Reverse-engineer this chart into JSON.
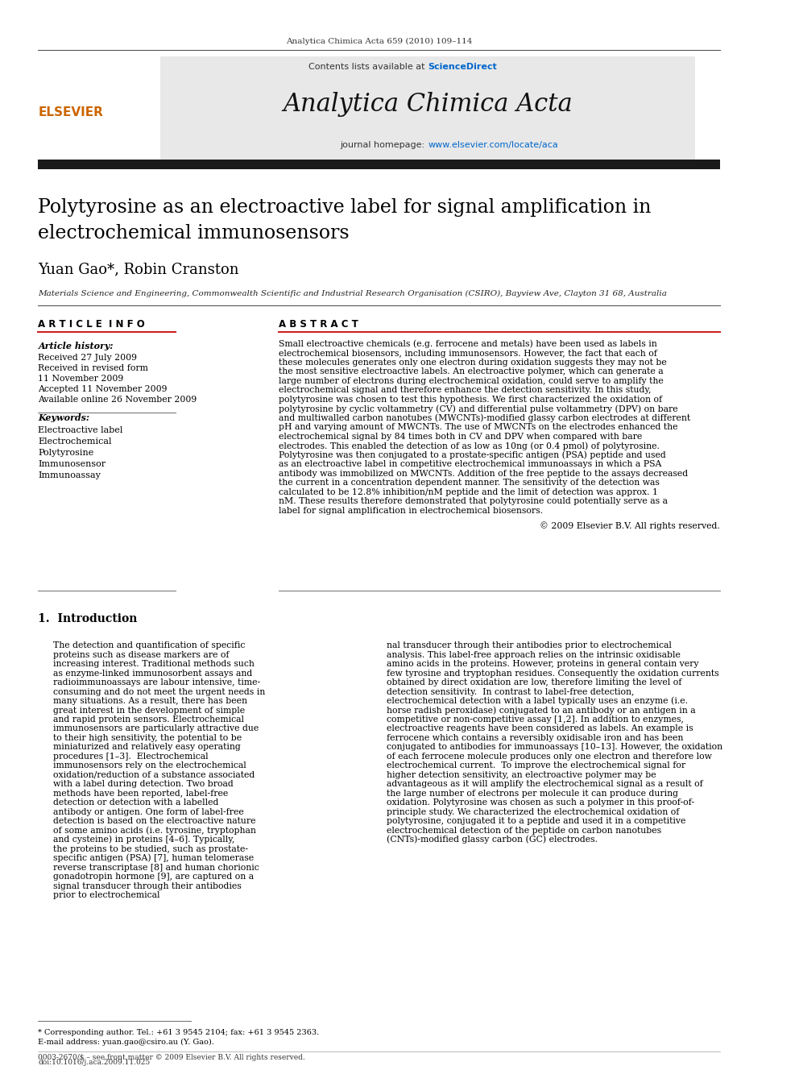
{
  "page_bg": "#ffffff",
  "top_journal_ref": "Analytica Chimica Acta 659 (2010) 109–114",
  "header_bg": "#e8e8e8",
  "journal_name": "Analytica Chimica Acta",
  "contents_line": "Contents lists available at ScienceDirect",
  "sciencedirect_color": "#0066cc",
  "homepage_line": "journal homepage: www.elsevier.com/locate/aca",
  "homepage_url_color": "#0066cc",
  "title": "Polytyrosine as an electroactive label for signal amplification in\nelectrochemical immunosensors",
  "authors": "Yuan Gao*, Robin Cranston",
  "affiliation": "Materials Science and Engineering, Commonwealth Scientific and Industrial Research Organisation (CSIRO), Bayview Ave, Clayton 31 68, Australia",
  "article_info_header": "A R T I C L E  I N F O",
  "abstract_header": "A B S T R A C T",
  "article_history_label": "Article history:",
  "received": "Received 27 July 2009",
  "received_revised": "Received in revised form",
  "date_revised": "11 November 2009",
  "accepted": "Accepted 11 November 2009",
  "available": "Available online 26 November 2009",
  "keywords_label": "Keywords:",
  "keywords": [
    "Electroactive label",
    "Electrochemical",
    "Polytyrosine",
    "Immunosensor",
    "Immunoassay"
  ],
  "abstract_text": "Small electroactive chemicals (e.g. ferrocene and metals) have been used as labels in electrochemical biosensors, including immunosensors. However, the fact that each of these molecules generates only one electron during oxidation suggests they may not be the most sensitive electroactive labels. An electroactive polymer, which can generate a large number of electrons during electrochemical oxidation, could serve to amplify the electrochemical signal and therefore enhance the detection sensitivity. In this study, polytyrosine was chosen to test this hypothesis. We first characterized the oxidation of polytyrosine by cyclic voltammetry (CV) and differential pulse voltammetry (DPV) on bare and multiwalled carbon nanotubes (MWCNTs)-modified glassy carbon electrodes at different pH and varying amount of MWCNTs. The use of MWCNTs on the electrodes enhanced the electrochemical signal by 84 times both in CV and DPV when compared with bare electrodes. This enabled the detection of as low as 10ng (or 0.4 pmol) of polytyrosine. Polytyrosine was then conjugated to a prostate-specific antigen (PSA) peptide and used as an electroactive label in competitive electrochemical immunoassays in which a PSA antibody was immobilized on MWCNTs. Addition of the free peptide to the assays decreased the current in a concentration dependent manner. The sensitivity of the detection was calculated to be 12.8% inhibition/nM peptide and the limit of detection was approx. 1 nM. These results therefore demonstrated that polytyrosine could potentially serve as a label for signal amplification in electrochemical biosensors.",
  "copyright": "© 2009 Elsevier B.V. All rights reserved.",
  "section1_header": "1.  Introduction",
  "intro_col1_p1": "The detection and quantification of specific proteins such as disease markers are of increasing interest. Traditional methods such as enzyme-linked immunosorbent assays and radioimmunoassays are labour intensive, time-consuming and do not meet the urgent needs in many situations. As a result, there has been great interest in the development of simple and rapid protein sensors. Electrochemical immunosensors are particularly attractive due to their high sensitivity, the potential to be miniaturized and relatively easy operating procedures [1–3].",
  "intro_col1_p2": "Electrochemical immunosensors rely on the electrochemical oxidation/reduction of a substance associated with a label during detection. Two broad methods have been reported, label-free detection or detection with a labelled antibody or antigen. One form of label-free detection is based on the electroactive nature of some amino acids (i.e. tyrosine, tryptophan and cysteine) in proteins [4–6]. Typically, the proteins to be studied, such as prostate-specific antigen (PSA) [7], human telomerase reverse transcriptase [8] and human chorionic gonadotropin hormone [9], are captured on a signal transducer through their antibodies prior to electrochemical",
  "intro_col2_p1": "nal transducer through their antibodies prior to electrochemical analysis. This label-free approach relies on the intrinsic oxidisable amino acids in the proteins. However, proteins in general contain very few tyrosine and tryptophan residues. Consequently the oxidation currents obtained by direct oxidation are low, therefore limiting the level of detection sensitivity.",
  "intro_col2_p2": "In contrast to label-free detection, electrochemical detection with a label typically uses an enzyme (i.e. horse radish peroxidase) conjugated to an antibody or an antigen in a competitive or non-competitive assay [1,2]. In addition to enzymes, electroactive reagents have been considered as labels. An example is ferrocene which contains a reversibly oxidisable iron and has been conjugated to antibodies for immunoassays [10–13]. However, the oxidation of each ferrocene molecule produces only one electron and therefore low electrochemical current.",
  "intro_col2_p3": "To improve the electrochemical signal for higher detection sensitivity, an electroactive polymer may be advantageous as it will amplify the electrochemical signal as a result of the large number of electrons per molecule it can produce during oxidation. Polytyrosine was chosen as such a polymer in this proof-of-principle study. We characterized the electrochemical oxidation of polytyrosine, conjugated it to a peptide and used it in a competitive electrochemical detection of the peptide on carbon nanotubes (CNTs)-modified glassy carbon (GC) electrodes.",
  "footnote_star": "* Corresponding author. Tel.: +61 3 9545 2104; fax: +61 3 9545 2363.",
  "footnote_email": "E-mail address: yuan.gao@csiro.au (Y. Gao).",
  "footer_left": "0003-2670/$ – see front matter © 2009 Elsevier B.V. All rights reserved.",
  "footer_doi": "doi:10.1016/j.aca.2009.11.025",
  "dark_bar_color": "#1a1a1a",
  "orange_color": "#cc6600",
  "blue_color": "#003399"
}
